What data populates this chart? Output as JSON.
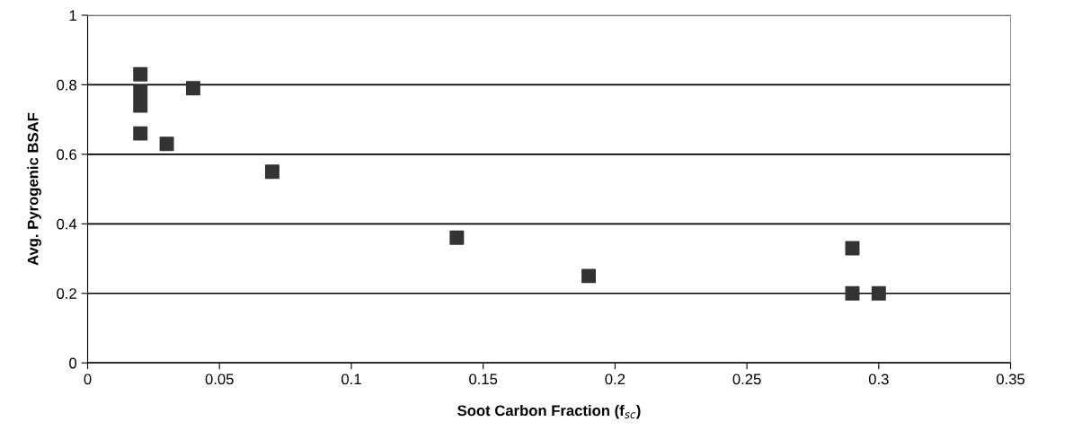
{
  "chart_data": {
    "type": "scatter",
    "xlabel": "Soot Carbon Fraction (f$_{sc}$)",
    "ylabel": "Avg. Pyrogenic BSAF",
    "x": [
      0.02,
      0.02,
      0.02,
      0.02,
      0.03,
      0.04,
      0.07,
      0.14,
      0.19,
      0.29,
      0.29,
      0.3
    ],
    "series": [
      {
        "color": "#333333",
        "values": [
          0.83,
          0.78,
          0.74,
          0.66,
          0.63,
          0.79,
          0.55,
          0.36,
          0.25,
          0.33,
          0.2,
          0.2
        ]
      }
    ],
    "xlim": [
      0,
      0.35
    ],
    "xticks": [
      0,
      0.05,
      0.1,
      0.15,
      0.2,
      0.25,
      0.3,
      0.35
    ],
    "ylim": [
      0,
      1
    ],
    "yticks": [
      0,
      0.2,
      0.4,
      0.6,
      0.8,
      1
    ],
    "grid": "y",
    "marker": "square",
    "legend": false
  }
}
